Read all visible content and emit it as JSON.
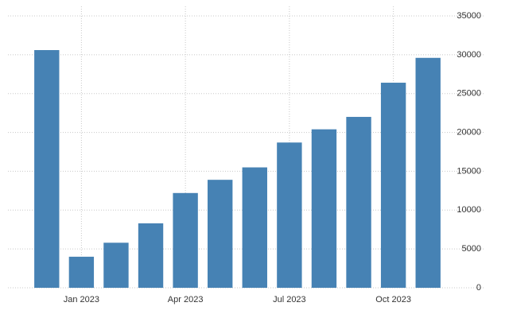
{
  "chart_data": {
    "type": "bar",
    "categories": [
      null,
      "Jan 2023",
      null,
      null,
      "Apr 2023",
      null,
      null,
      "Jul 2023",
      null,
      null,
      "Oct 2023",
      null
    ],
    "values": [
      30600,
      4000,
      5800,
      8300,
      12200,
      13900,
      15500,
      18700,
      20400,
      22000,
      26400,
      29600
    ],
    "color": "#4682b4",
    "ylim": [
      0,
      35000
    ],
    "yticks": [
      0,
      5000,
      10000,
      15000,
      20000,
      25000,
      30000,
      35000
    ],
    "grid": true
  }
}
